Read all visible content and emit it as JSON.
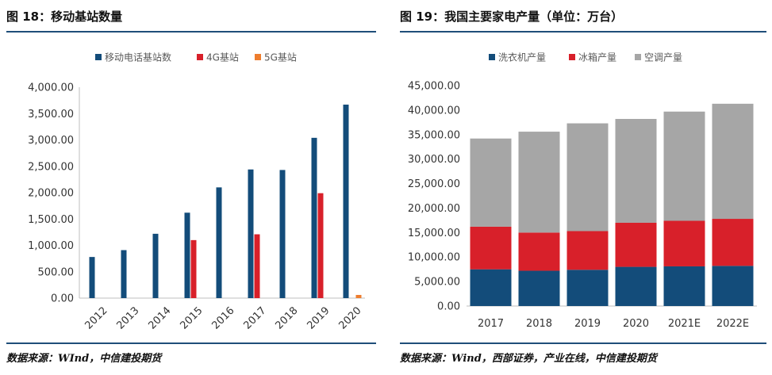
{
  "left_title": "图 18：移动基站数量",
  "right_title": "图 19：我国主要家电产量（单位：万台）",
  "left_source": "数据来源：WInd，中信建投期货",
  "right_source": "数据来源：Wind，西部证券，产业在线，中信建投期货",
  "colors": {
    "rule": "#1f4e79",
    "navy": "#134c7a",
    "red": "#d8202a",
    "orange": "#ee7d2e",
    "gray": "#a6a6a6"
  },
  "chart_data": [
    {
      "type": "bar",
      "title": "移动基站数量",
      "categories": [
        "2012",
        "2013",
        "2014",
        "2015",
        "2016",
        "2017",
        "2018",
        "2019",
        "2020"
      ],
      "series": [
        {
          "name": "移动电话基站数",
          "color": "#134c7a",
          "values": [
            780,
            910,
            1220,
            1620,
            2100,
            2440,
            2430,
            3040,
            3670
          ]
        },
        {
          "name": "4G基站",
          "color": "#d8202a",
          "values": [
            0,
            0,
            0,
            1100,
            0,
            1210,
            0,
            1990,
            0
          ]
        },
        {
          "name": "5G基站",
          "color": "#ee7d2e",
          "values": [
            0,
            0,
            0,
            0,
            0,
            0,
            0,
            0,
            60
          ]
        }
      ],
      "yticks": [
        "0.00",
        "500.00",
        "1,000.00",
        "1,500.00",
        "2,000.00",
        "2,500.00",
        "3,000.00",
        "3,500.00",
        "4,000.00"
      ],
      "ylim": [
        0,
        4000
      ],
      "xlabel": "",
      "ylabel": "",
      "legend_position": "top"
    },
    {
      "type": "stacked-bar",
      "title": "我国主要家电产量（单位：万台）",
      "categories": [
        "2017",
        "2018",
        "2019",
        "2020",
        "2021E",
        "2022E"
      ],
      "series": [
        {
          "name": "洗衣机产量",
          "color": "#134c7a",
          "values": [
            7500,
            7200,
            7400,
            8000,
            8100,
            8200
          ]
        },
        {
          "name": "冰箱产量",
          "color": "#d8202a",
          "values": [
            8700,
            7800,
            7900,
            9000,
            9300,
            9600
          ]
        },
        {
          "name": "空调产量",
          "color": "#a6a6a6",
          "values": [
            18000,
            20600,
            22000,
            21200,
            22300,
            23500
          ]
        }
      ],
      "yticks": [
        "0.00",
        "5,000.00",
        "10,000.00",
        "15,000.00",
        "20,000.00",
        "25,000.00",
        "30,000.00",
        "35,000.00",
        "40,000.00",
        "45,000.00"
      ],
      "ylim": [
        0,
        45000
      ],
      "xlabel": "",
      "ylabel": "",
      "legend_position": "top"
    }
  ]
}
